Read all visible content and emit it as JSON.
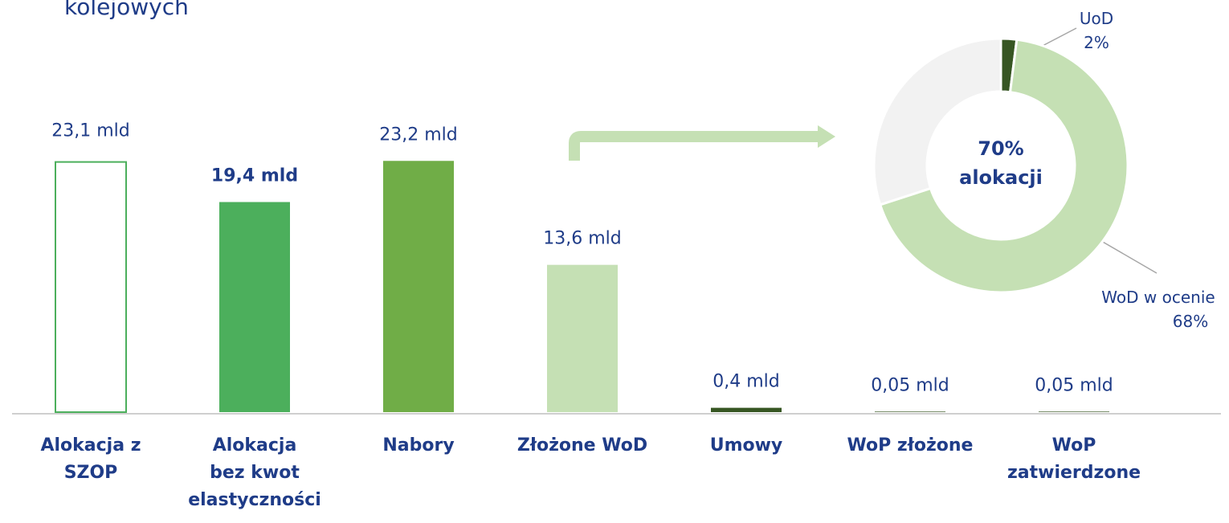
{
  "chart_data": [
    {
      "type": "bar",
      "title": "kolejowych",
      "categories": [
        "Alokacja z\nSZOP",
        "Alokacja\nbez kwot\nelastyczności",
        "Nabory",
        "Złożone WoD",
        "Umowy",
        "WoP złożone",
        "WoP\nzatwierdzone"
      ],
      "values": [
        23.1,
        19.4,
        23.2,
        13.6,
        0.4,
        0.05,
        0.05
      ],
      "value_labels": [
        "23,1 mld",
        "19,4 mld",
        "23,2 mld",
        "13,6 mld",
        "0,4 mld",
        "0,05 mld",
        "0,05 mld"
      ],
      "colors": [
        "#4caf5c",
        "#4caf5c",
        "#70ad47",
        "#c5e0b4",
        "#375623",
        "#375623",
        "#375623"
      ],
      "hollow_bars": [
        0
      ],
      "bold_labels": [
        1
      ],
      "ylim": [
        0,
        25
      ]
    },
    {
      "type": "donut",
      "names": [
        "UoD",
        "WoD w ocenie",
        null
      ],
      "values": [
        2,
        68,
        30
      ],
      "value_labels": [
        "2%",
        "68%",
        null
      ],
      "colors": [
        "#375623",
        "#c5e0b4",
        "#f2f2f2"
      ],
      "center_value_label": "70%",
      "center_text": "alokacji"
    }
  ]
}
